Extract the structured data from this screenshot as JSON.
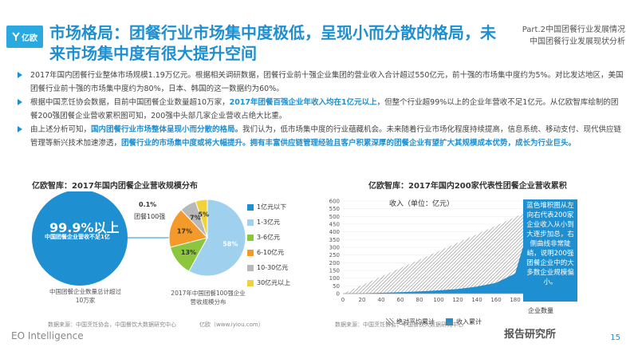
{
  "brand": {
    "logo_text": "亿欧",
    "footer_brand": "EO Intelligence"
  },
  "header": {
    "title": "市场格局：团餐行业市场集中度极低，呈现小而分散的格局，未来市场集中度有很大提升空间",
    "part_line1": "Part.2中国团餐行业发展情况",
    "part_line2": "中国团餐行业发展现状分析"
  },
  "bullets": [
    {
      "pre": "2017年国内团餐行业整体市场规模1.19万亿元。根据相关调研数据，团餐行业前十强企业集团的营业收入合计超过550亿元，前十强的市场集中度约为5%。对比发达地区，美国团餐行业前十强的市场集中度约为80%，日本、韩国的这一数据约为60%。",
      "hl": "",
      "post": ""
    },
    {
      "pre": "根据中国烹饪协会数据，目前中国团餐企业数量超10万家，",
      "hl": "2017年团餐百强企业年收入均在1亿元以上",
      "post": "，但整个行业超99%以上的企业年营收不足1亿元。从亿欧智库绘制的团餐200强团餐企业营收累积图可知，200强中头部几家企业营收占绝大比重。"
    },
    {
      "pre": "由上述分析可知，",
      "hl": "国内团餐行业市场整体呈现小而分散的格局。",
      "post": "我们认为，低市场集中度的行业蕴藏机会。未来随着行业市场化程度持续提高，信息系统、移动支付、现代供应链管理等新兴技术加速渗透，",
      "hl2": "团餐行业的市场集中度或将大幅提升。拥有丰富供应链管理经验且客户积累深厚的团餐企业有望扩大其规模成本优势，成长为行业巨头。"
    }
  ],
  "left_panel": {
    "title": "亿欧智库：2017年国内团餐企业营收规模分布",
    "big_label": "99.9%以上",
    "big_sub": "中国团餐企业营收不足1亿",
    "top_label1": "0.1%",
    "top_label2": "团餐100强",
    "below_left": "中国团餐企业数量总计超过10万家",
    "below_right": "2017年中国团餐100强企业营收规模分布",
    "source": "数据来源：中国烹饪协会，中国餐饮大数据研究中心",
    "site": "亿欧（www.iyiou.com）"
  },
  "right_panel": {
    "title": "亿欧智库：2017年国内200家代表性团餐企业营收累积",
    "note": "蓝色堆积图从左向右代表200家企业收入从小到大逐步加总，右侧曲线非常陡峭，说明200强团餐企业中的大多数企业规模偏小。",
    "source": "数据来源：中国烹饪协会，中国餐饮大数据研究中心",
    "site": "亿欧（www.iyiou.com）"
  },
  "footer": {
    "wechat": "报告研究所",
    "page": "15"
  },
  "chart_data": [
    {
      "type": "pie",
      "title": "亿欧智库：2017年国内团餐企业营收规模分布",
      "categories": [
        "1亿元以下",
        "1-3亿元",
        "3-6亿元",
        "6-10亿元",
        "10-30亿元",
        "30亿元以上"
      ],
      "values": [
        0,
        58,
        13,
        17,
        7,
        5
      ],
      "value_labels": [
        "",
        "58%",
        "13%",
        "17%",
        "7%",
        "5%"
      ],
      "colors": [
        "#1e8fd1",
        "#9fd0ee",
        "#8cc63f",
        "#f39a2b",
        "#b8b8b8",
        "#f0d33a"
      ],
      "legend_position": "right"
    },
    {
      "type": "area",
      "title": "亿欧智库：2017年国内200家代表性团餐企业营收累积",
      "ylabel": "收入（单位：亿元）",
      "xlabel": "企业数量",
      "x": [
        0,
        20,
        40,
        60,
        80,
        100,
        120,
        140,
        160,
        180,
        200
      ],
      "xlim": [
        0,
        200
      ],
      "ylim": [
        0,
        600
      ],
      "yticks": [
        0,
        50,
        100,
        150,
        200,
        250,
        300,
        350,
        400,
        450,
        500,
        550,
        600
      ],
      "series": [
        {
          "name": "绝对平均累计",
          "values": [
            0,
            55,
            110,
            165,
            220,
            275,
            330,
            385,
            440,
            495,
            550
          ]
        },
        {
          "name": "收入累计",
          "values": [
            0,
            2,
            5,
            9,
            14,
            21,
            30,
            45,
            70,
            130,
            550
          ]
        }
      ],
      "colors": [
        "#8a8a8a",
        "#1e8fd1"
      ],
      "legend_position": "bottom"
    }
  ]
}
